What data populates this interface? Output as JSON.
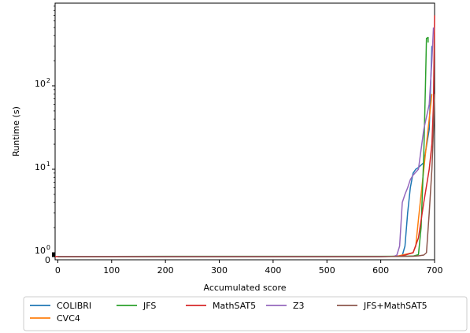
{
  "chart_data": {
    "type": "line",
    "xlabel": "Accumulated score",
    "ylabel": "Runtime (s)",
    "xlim": [
      -5,
      700
    ],
    "xscale": "linear",
    "yscale": "symlog",
    "x_ticks": [
      {
        "value": 0,
        "label": "0"
      },
      {
        "value": 100,
        "label": "100"
      },
      {
        "value": 200,
        "label": "200"
      },
      {
        "value": 300,
        "label": "300"
      },
      {
        "value": 400,
        "label": "400"
      },
      {
        "value": 500,
        "label": "500"
      },
      {
        "value": 600,
        "label": "600"
      },
      {
        "value": 700,
        "label": "700"
      }
    ],
    "y_ticks": [
      {
        "value": 0,
        "label": "0"
      },
      {
        "value": 1,
        "label": "10",
        "exp": "0"
      },
      {
        "value": 10,
        "label": "10",
        "exp": "1"
      },
      {
        "value": 100,
        "label": "10",
        "exp": "2"
      }
    ],
    "grid": false,
    "legend_position": "bottom",
    "series": [
      {
        "name": "COLIBRI",
        "color": "#1f77b4",
        "points": [
          [
            0,
            0.005
          ],
          [
            500,
            0.005
          ],
          [
            520,
            0.03
          ],
          [
            600,
            0.04
          ],
          [
            630,
            0.06
          ],
          [
            640,
            0.3
          ],
          [
            645,
            1.2
          ],
          [
            650,
            3
          ],
          [
            655,
            6
          ],
          [
            660,
            9
          ],
          [
            665,
            10
          ],
          [
            670,
            10.5
          ],
          [
            680,
            12
          ],
          [
            690,
            30
          ],
          [
            695,
            300
          ]
        ]
      },
      {
        "name": "CVC4",
        "color": "#ff7f0e",
        "points": [
          [
            0,
            0.005
          ],
          [
            560,
            0.005
          ],
          [
            600,
            0.03
          ],
          [
            630,
            0.08
          ],
          [
            640,
            0.4
          ],
          [
            650,
            0.7
          ],
          [
            660,
            1.0
          ],
          [
            665,
            1.2
          ],
          [
            670,
            2.5
          ],
          [
            675,
            5
          ],
          [
            680,
            10
          ],
          [
            685,
            20
          ],
          [
            690,
            40
          ],
          [
            695,
            80
          ]
        ]
      },
      {
        "name": "JFS",
        "color": "#2ca02c",
        "points": [
          [
            0,
            0.06
          ],
          [
            100,
            0.065
          ],
          [
            200,
            0.07
          ],
          [
            300,
            0.07
          ],
          [
            400,
            0.075
          ],
          [
            500,
            0.08
          ],
          [
            600,
            0.09
          ],
          [
            640,
            0.1
          ],
          [
            660,
            0.15
          ],
          [
            670,
            0.5
          ],
          [
            675,
            2
          ],
          [
            680,
            15
          ],
          [
            683,
            100
          ],
          [
            685,
            370
          ],
          [
            688,
            380
          ],
          [
            688,
            330
          ]
        ]
      },
      {
        "name": "MathSAT5",
        "color": "#d62728",
        "points": [
          [
            -5,
            0.01
          ],
          [
            600,
            0.01
          ],
          [
            620,
            0.05
          ],
          [
            630,
            0.1
          ],
          [
            640,
            0.2
          ],
          [
            650,
            0.6
          ],
          [
            660,
            1.0
          ],
          [
            670,
            1.5
          ],
          [
            680,
            4
          ],
          [
            690,
            10
          ],
          [
            695,
            20
          ],
          [
            698,
            60
          ],
          [
            700,
            700
          ]
        ]
      },
      {
        "name": "Z3",
        "color": "#9467bd",
        "points": [
          [
            0,
            0.01
          ],
          [
            510,
            0.01
          ],
          [
            520,
            0.03
          ],
          [
            600,
            0.03
          ],
          [
            625,
            0.08
          ],
          [
            630,
            0.4
          ],
          [
            635,
            1.2
          ],
          [
            640,
            4
          ],
          [
            645,
            5
          ],
          [
            650,
            6
          ],
          [
            655,
            7.5
          ],
          [
            660,
            8.5
          ],
          [
            670,
            10
          ],
          [
            680,
            30
          ],
          [
            690,
            60
          ],
          [
            695,
            200
          ],
          [
            698,
            500
          ]
        ]
      },
      {
        "name": "JFS+MathSAT5",
        "color": "#8c564b",
        "points": [
          [
            0,
            0.005
          ],
          [
            600,
            0.005
          ],
          [
            620,
            0.06
          ],
          [
            640,
            0.08
          ],
          [
            660,
            0.1
          ],
          [
            670,
            0.2
          ],
          [
            680,
            0.4
          ],
          [
            685,
            1
          ],
          [
            690,
            3
          ],
          [
            695,
            10
          ],
          [
            698,
            30
          ],
          [
            700,
            80
          ]
        ]
      }
    ]
  }
}
